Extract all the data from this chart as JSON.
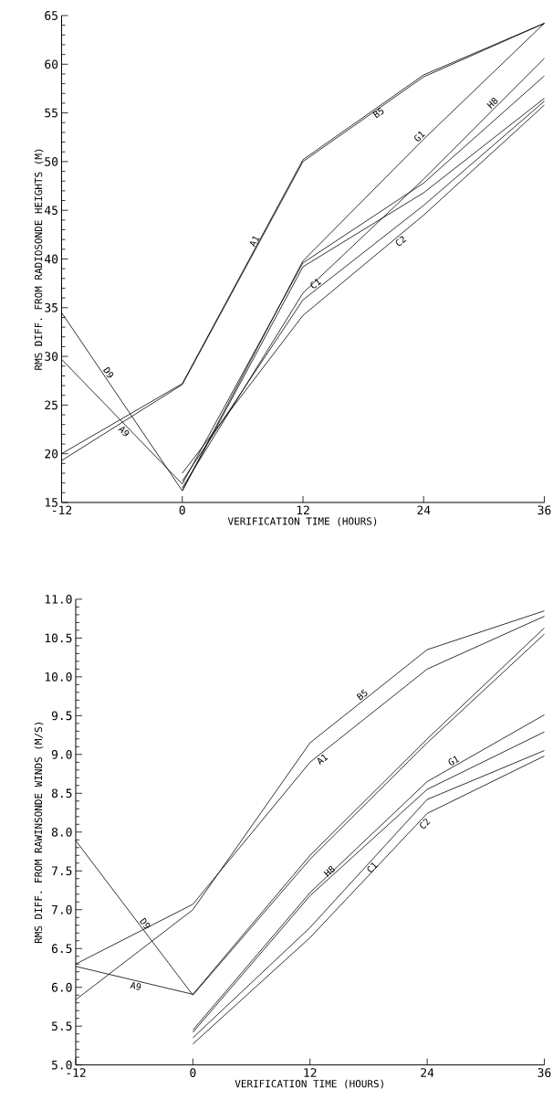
{
  "chart_data": [
    {
      "type": "line",
      "xlabel": "VERIFICATION TIME (HOURS)",
      "ylabel": "RMS DIFF. FROM RADIOSONDE HEIGHTS (M)",
      "xlim": [
        -12,
        36
      ],
      "xticks": [
        -12,
        0,
        12,
        24,
        36
      ],
      "ylim": [
        15,
        65
      ],
      "yticks": [
        15,
        20,
        25,
        30,
        35,
        40,
        45,
        50,
        55,
        60,
        65
      ],
      "series": [
        {
          "name": "A1",
          "color": "#000000",
          "x": [
            -12,
            0,
            12,
            24,
            36
          ],
          "values": [
            19.3,
            27.1,
            50.0,
            58.7,
            64.2
          ]
        },
        {
          "name": "B5",
          "color": "#000000",
          "x": [
            -12,
            0,
            12,
            24,
            36
          ],
          "values": [
            20.0,
            27.2,
            50.2,
            58.9,
            64.2
          ]
        },
        {
          "name": "A9",
          "color": "#000000",
          "x": [
            -12,
            0,
            12,
            24,
            36
          ],
          "values": [
            29.7,
            16.9,
            39.6,
            47.8,
            58.8
          ]
        },
        {
          "name": "D9",
          "color": "#000000",
          "x": [
            -12,
            0,
            12,
            24,
            36
          ],
          "values": [
            34.5,
            16.2,
            39.2,
            46.8,
            56.5
          ]
        },
        {
          "name": "G1",
          "color": "#000000",
          "x": [
            0,
            12,
            24,
            36
          ],
          "values": [
            16.2,
            39.8,
            52.3,
            64.2
          ]
        },
        {
          "name": "H8",
          "color": "#000000",
          "x": [
            0,
            12,
            24,
            36
          ],
          "values": [
            16.5,
            36.5,
            48.2,
            60.6
          ]
        },
        {
          "name": "C1",
          "color": "#000000",
          "x": [
            0,
            12,
            24,
            36
          ],
          "values": [
            17.2,
            35.8,
            45.5,
            56.2
          ]
        },
        {
          "name": "C2",
          "color": "#000000",
          "x": [
            0,
            12,
            24,
            36
          ],
          "values": [
            18.0,
            34.2,
            44.5,
            55.8
          ]
        }
      ]
    },
    {
      "type": "line",
      "xlabel": "VERIFICATION TIME (HOURS)",
      "ylabel": "RMS DIFF. FROM RAWINSONDE WINDS (M/S)",
      "xlim": [
        -12,
        36
      ],
      "xticks": [
        -12,
        0,
        12,
        24,
        36
      ],
      "ylim": [
        5,
        11
      ],
      "yticks": [
        {
          "value": 5,
          "label": "5.0"
        },
        5.5,
        {
          "value": 6,
          "label": "6.0"
        },
        6.5,
        {
          "value": 7,
          "label": "7.0"
        },
        7.5,
        {
          "value": 8,
          "label": "8.0"
        },
        8.5,
        {
          "value": 9,
          "label": "9.0"
        },
        9.5,
        {
          "value": 10,
          "label": "10.0"
        },
        10.5,
        {
          "value": 11,
          "label": "11.0"
        }
      ],
      "series": [
        {
          "name": "A1",
          "color": "#000000",
          "x": [
            -12,
            0,
            12,
            24,
            36
          ],
          "values": [
            6.3,
            7.07,
            8.9,
            10.1,
            10.78
          ]
        },
        {
          "name": "B5",
          "color": "#000000",
          "x": [
            -12,
            0,
            12,
            24,
            36
          ],
          "values": [
            5.84,
            7.0,
            9.15,
            10.35,
            10.85
          ]
        },
        {
          "name": "A9",
          "color": "#000000",
          "x": [
            -12,
            0,
            12,
            24,
            36
          ],
          "values": [
            6.27,
            5.91,
            7.7,
            9.2,
            10.63
          ]
        },
        {
          "name": "D9",
          "color": "#000000",
          "x": [
            -12,
            0,
            12,
            24,
            36
          ],
          "values": [
            7.89,
            5.9,
            7.65,
            9.15,
            10.55
          ]
        },
        {
          "name": "G1",
          "color": "#000000",
          "x": [
            0,
            12,
            24,
            36
          ],
          "values": [
            5.45,
            7.22,
            8.65,
            9.51
          ]
        },
        {
          "name": "H8",
          "color": "#000000",
          "x": [
            0,
            12,
            24,
            36
          ],
          "values": [
            5.42,
            7.18,
            8.55,
            9.29
          ]
        },
        {
          "name": "C1",
          "color": "#000000",
          "x": [
            0,
            12,
            24,
            36
          ],
          "values": [
            5.35,
            6.77,
            8.42,
            9.05
          ]
        },
        {
          "name": "C2",
          "color": "#000000",
          "x": [
            0,
            12,
            24,
            36
          ],
          "values": [
            5.27,
            6.64,
            8.24,
            8.98
          ]
        }
      ]
    }
  ]
}
